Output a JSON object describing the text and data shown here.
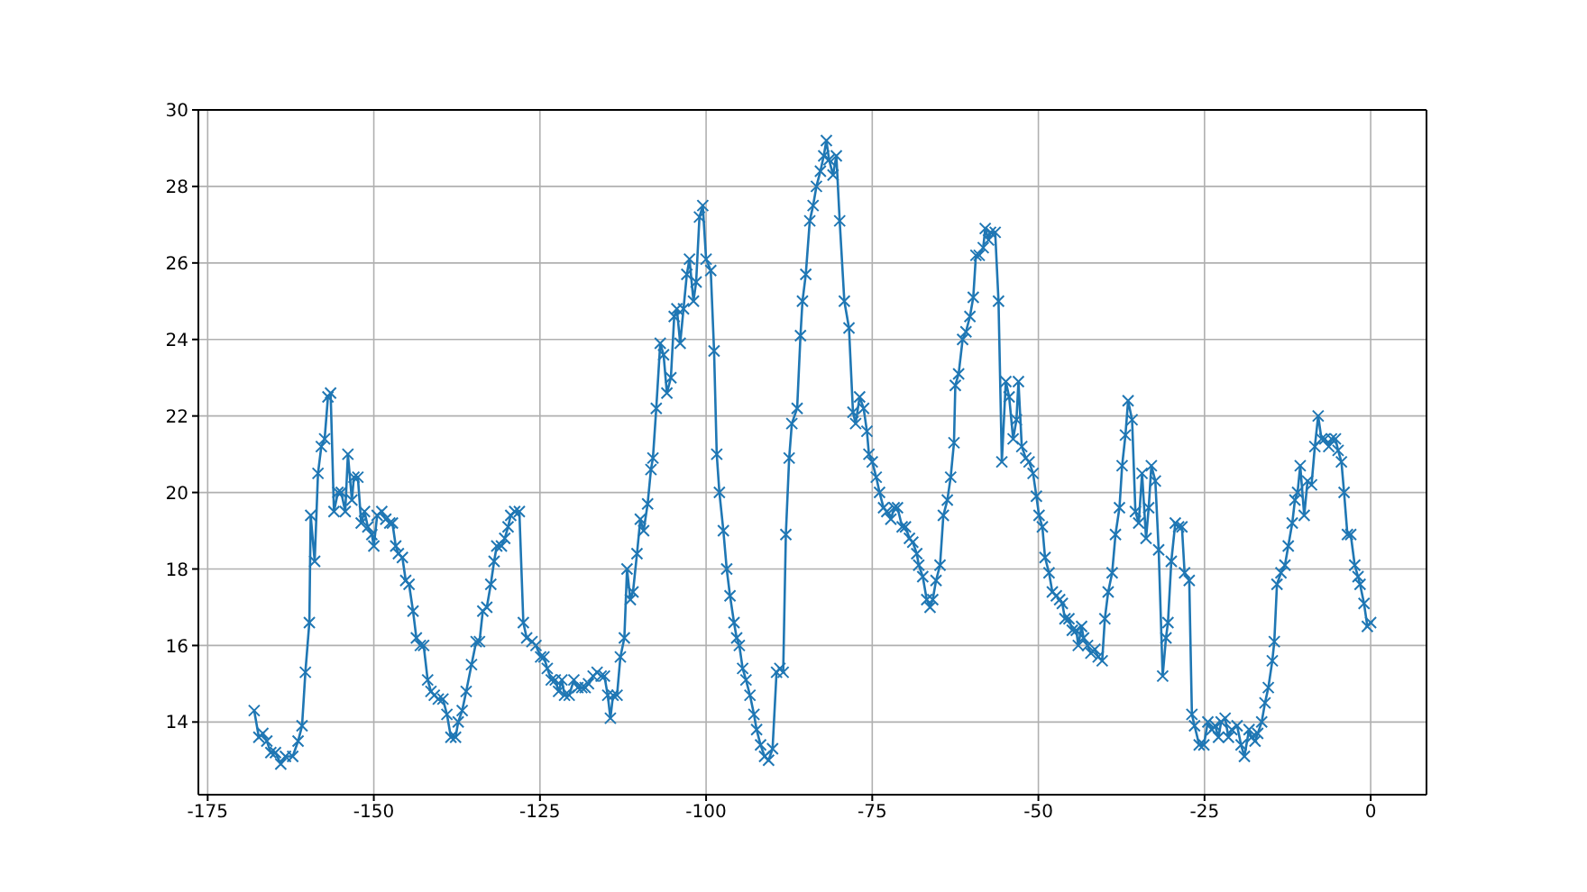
{
  "chart_data": {
    "type": "line",
    "xlim": [
      -176.4,
      8.4
    ],
    "ylim": [
      12.1,
      30
    ],
    "xticks": [
      -175,
      -150,
      -125,
      -100,
      -75,
      -50,
      -25,
      0
    ],
    "yticks": [
      14,
      16,
      18,
      20,
      22,
      24,
      26,
      28,
      30
    ],
    "grid": true,
    "marker": "cross",
    "x": [
      -168.0,
      -167.3,
      -166.7,
      -166.1,
      -165.5,
      -164.8,
      -164.0,
      -163.3,
      -162.2,
      -161.4,
      -160.8,
      -160.3,
      -159.7,
      -159.5,
      -158.9,
      -158.4,
      -157.9,
      -157.4,
      -156.9,
      -156.5,
      -156.0,
      -155.4,
      -154.9,
      -154.3,
      -153.9,
      -153.3,
      -153.0,
      -152.4,
      -151.9,
      -151.4,
      -150.9,
      -150.3,
      -150.0,
      -149.5,
      -148.8,
      -148.2,
      -147.6,
      -147.2,
      -146.7,
      -146.3,
      -145.7,
      -145.2,
      -144.7,
      -144.1,
      -143.6,
      -143.0,
      -142.5,
      -141.9,
      -141.4,
      -140.9,
      -140.3,
      -139.6,
      -139.0,
      -138.4,
      -137.7,
      -137.3,
      -136.7,
      -136.1,
      -135.3,
      -134.6,
      -134.1,
      -133.6,
      -133.0,
      -132.4,
      -131.9,
      -131.5,
      -130.8,
      -130.3,
      -129.8,
      -129.4,
      -128.8,
      -128.1,
      -127.5,
      -127.0,
      -126.2,
      -125.6,
      -124.9,
      -124.4,
      -123.9,
      -123.3,
      -122.7,
      -122.2,
      -121.7,
      -121.3,
      -120.6,
      -119.9,
      -119.3,
      -118.7,
      -118.2,
      -117.7,
      -117.0,
      -116.4,
      -115.8,
      -115.3,
      -114.8,
      -114.4,
      -114.0,
      -113.4,
      -112.9,
      -112.3,
      -111.9,
      -111.4,
      -111.0,
      -110.4,
      -109.9,
      -109.4,
      -108.8,
      -108.3,
      -108.0,
      -107.5,
      -106.9,
      -106.4,
      -105.9,
      -105.3,
      -104.8,
      -104.4,
      -103.9,
      -103.4,
      -102.9,
      -102.5,
      -101.9,
      -101.5,
      -101.0,
      -100.5,
      -100.0,
      -99.3,
      -98.8,
      -98.4,
      -98.0,
      -97.4,
      -96.9,
      -96.4,
      -95.8,
      -95.4,
      -95.0,
      -94.5,
      -94.0,
      -93.4,
      -92.8,
      -92.4,
      -91.8,
      -91.2,
      -90.6,
      -90.0,
      -89.4,
      -88.9,
      -88.4,
      -88.0,
      -87.5,
      -87.1,
      -86.3,
      -85.8,
      -85.5,
      -85.0,
      -84.4,
      -83.9,
      -83.4,
      -82.8,
      -82.3,
      -81.9,
      -81.5,
      -80.9,
      -80.4,
      -79.9,
      -79.2,
      -78.5,
      -77.9,
      -77.5,
      -76.9,
      -76.3,
      -75.8,
      -75.5,
      -75.0,
      -74.4,
      -73.9,
      -73.3,
      -72.8,
      -72.2,
      -71.7,
      -71.2,
      -70.5,
      -70.0,
      -69.4,
      -68.9,
      -68.3,
      -68.0,
      -67.4,
      -66.8,
      -66.3,
      -65.9,
      -65.4,
      -64.8,
      -64.3,
      -63.7,
      -63.2,
      -62.7,
      -62.5,
      -62.0,
      -61.4,
      -60.9,
      -60.3,
      -59.8,
      -59.4,
      -58.9,
      -58.3,
      -58.0,
      -57.5,
      -57.2,
      -56.5,
      -56.0,
      -55.5,
      -54.9,
      -54.4,
      -53.8,
      -53.3,
      -53.0,
      -52.5,
      -51.9,
      -51.4,
      -50.8,
      -50.3,
      -49.9,
      -49.4,
      -49.0,
      -48.4,
      -47.9,
      -47.3,
      -46.8,
      -46.4,
      -46.0,
      -45.4,
      -44.9,
      -44.3,
      -44.0,
      -43.5,
      -43.2,
      -42.6,
      -42.1,
      -41.5,
      -41.0,
      -40.4,
      -40.0,
      -39.5,
      -38.9,
      -38.4,
      -37.8,
      -37.4,
      -36.9,
      -36.5,
      -35.9,
      -35.4,
      -34.9,
      -34.4,
      -33.8,
      -33.4,
      -33.0,
      -32.4,
      -31.9,
      -31.3,
      -30.8,
      -30.5,
      -30.0,
      -29.4,
      -28.9,
      -28.4,
      -28.0,
      -27.3,
      -26.9,
      -26.5,
      -25.8,
      -25.1,
      -24.5,
      -23.9,
      -23.4,
      -22.9,
      -22.5,
      -21.9,
      -21.4,
      -20.9,
      -20.1,
      -19.5,
      -19.0,
      -18.3,
      -17.9,
      -17.4,
      -17.0,
      -16.4,
      -15.9,
      -15.4,
      -14.8,
      -14.5,
      -14.1,
      -13.5,
      -12.9,
      -12.4,
      -11.8,
      -11.4,
      -11.0,
      -10.6,
      -10.0,
      -9.5,
      -8.9,
      -8.4,
      -7.9,
      -7.4,
      -6.9,
      -6.3,
      -5.9,
      -5.3,
      -4.9,
      -4.4,
      -4.0,
      -3.5,
      -3.0,
      -2.4,
      -1.9,
      -1.6,
      -1.0,
      -0.5,
      0.0
    ],
    "series": [
      {
        "color": "#1f77b4",
        "values": [
          14.3,
          13.6,
          13.7,
          13.5,
          13.2,
          13.2,
          12.9,
          13.1,
          13.1,
          13.5,
          13.9,
          15.3,
          16.6,
          19.4,
          18.2,
          20.5,
          21.2,
          21.4,
          22.5,
          22.6,
          19.5,
          20.0,
          20.0,
          19.5,
          21.0,
          19.8,
          20.4,
          20.4,
          19.2,
          19.5,
          19.1,
          18.9,
          18.6,
          19.4,
          19.5,
          19.3,
          19.2,
          19.2,
          18.6,
          18.4,
          18.3,
          17.7,
          17.6,
          16.9,
          16.2,
          16.0,
          16.0,
          15.1,
          14.8,
          14.7,
          14.6,
          14.6,
          14.2,
          13.6,
          13.6,
          14.0,
          14.3,
          14.8,
          15.5,
          16.1,
          16.1,
          16.9,
          17.0,
          17.6,
          18.2,
          18.6,
          18.6,
          18.8,
          19.1,
          19.4,
          19.5,
          19.5,
          16.6,
          16.2,
          16.1,
          16.0,
          15.7,
          15.7,
          15.4,
          15.1,
          15.1,
          14.8,
          15.1,
          14.7,
          14.7,
          15.1,
          14.9,
          14.9,
          14.9,
          15.0,
          15.2,
          15.3,
          15.2,
          15.2,
          14.7,
          14.1,
          14.7,
          14.7,
          15.7,
          16.2,
          18.0,
          17.2,
          17.4,
          18.4,
          19.3,
          19.0,
          19.7,
          20.6,
          20.9,
          22.2,
          23.9,
          23.6,
          22.6,
          23.0,
          24.6,
          24.8,
          23.9,
          24.8,
          25.7,
          26.1,
          25.0,
          25.5,
          27.2,
          27.5,
          26.1,
          25.8,
          23.7,
          21.0,
          20.0,
          19.0,
          18.0,
          17.3,
          16.6,
          16.2,
          16.0,
          15.4,
          15.1,
          14.7,
          14.2,
          13.8,
          13.4,
          13.1,
          13.0,
          13.3,
          15.3,
          15.4,
          15.3,
          18.9,
          20.9,
          21.8,
          22.2,
          24.1,
          25.0,
          25.7,
          27.1,
          27.5,
          28.0,
          28.4,
          28.8,
          29.2,
          28.7,
          28.3,
          28.8,
          27.1,
          25.0,
          24.3,
          22.1,
          21.8,
          22.5,
          22.2,
          21.6,
          21.0,
          20.8,
          20.4,
          20.0,
          19.6,
          19.5,
          19.3,
          19.6,
          19.6,
          19.1,
          19.1,
          18.8,
          18.7,
          18.4,
          18.1,
          17.8,
          17.2,
          17.0,
          17.2,
          17.7,
          18.1,
          19.4,
          19.8,
          20.4,
          21.3,
          22.8,
          23.1,
          24.0,
          24.2,
          24.6,
          25.1,
          26.2,
          26.2,
          26.4,
          26.9,
          26.6,
          26.8,
          26.8,
          25.0,
          20.8,
          22.9,
          22.5,
          21.4,
          21.9,
          22.9,
          21.2,
          20.9,
          20.8,
          20.5,
          19.9,
          19.4,
          19.1,
          18.3,
          17.9,
          17.4,
          17.3,
          17.2,
          17.1,
          16.7,
          16.7,
          16.4,
          16.4,
          16.0,
          16.5,
          16.2,
          16.0,
          15.8,
          15.9,
          15.7,
          15.6,
          16.7,
          17.4,
          17.9,
          18.9,
          19.6,
          20.7,
          21.5,
          22.4,
          21.9,
          19.5,
          19.2,
          20.5,
          18.8,
          19.6,
          20.7,
          20.3,
          18.5,
          15.2,
          16.2,
          16.6,
          18.2,
          19.2,
          19.1,
          19.1,
          17.9,
          17.7,
          14.2,
          13.9,
          13.4,
          13.4,
          14.0,
          13.8,
          13.9,
          13.6,
          14.0,
          14.1,
          13.6,
          13.8,
          13.9,
          13.4,
          13.1,
          13.8,
          13.6,
          13.5,
          13.7,
          14.0,
          14.5,
          14.9,
          15.6,
          16.1,
          17.6,
          17.9,
          18.1,
          18.6,
          19.2,
          19.8,
          20.0,
          20.7,
          19.4,
          20.3,
          20.2,
          21.2,
          22.0,
          21.4,
          21.4,
          21.2,
          21.4,
          21.4,
          21.1,
          20.8,
          20.0,
          18.9,
          18.9,
          18.1,
          17.8,
          17.6,
          17.1,
          16.5,
          16.6
        ]
      }
    ]
  }
}
